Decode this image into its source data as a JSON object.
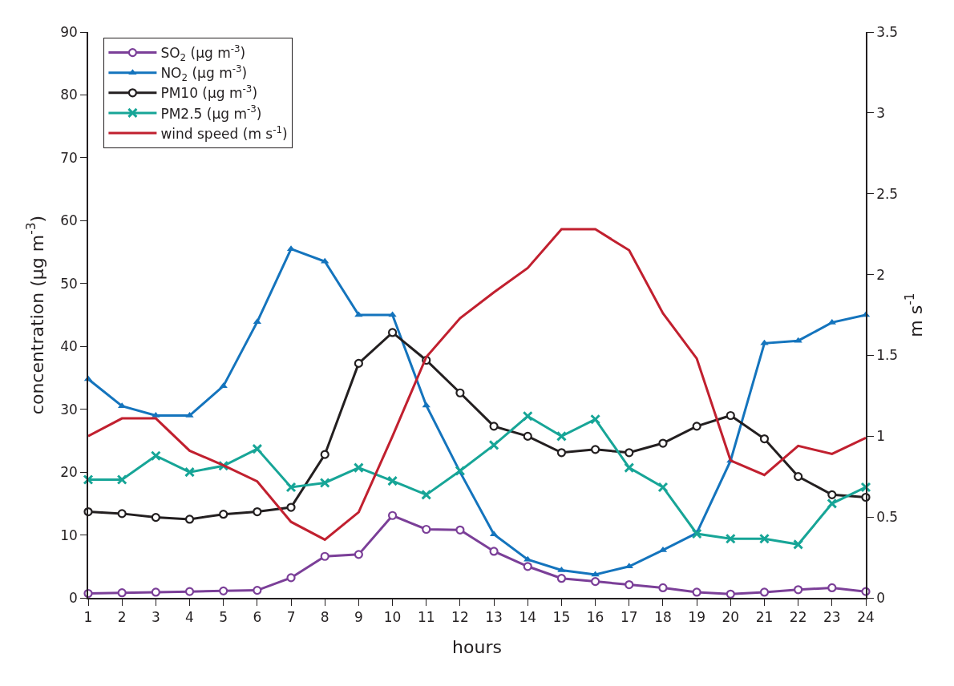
{
  "chart_data": {
    "type": "line",
    "xlabel": "hours",
    "ylabel": "concentration (µg m$^{-3}$)",
    "y2label": "m s$^{-1}$",
    "x": [
      1,
      2,
      3,
      4,
      5,
      6,
      7,
      8,
      9,
      10,
      11,
      12,
      13,
      14,
      15,
      16,
      17,
      18,
      19,
      20,
      21,
      22,
      23,
      24
    ],
    "xlim": [
      1,
      24
    ],
    "xticks": [
      1,
      2,
      3,
      4,
      5,
      6,
      7,
      8,
      9,
      10,
      11,
      12,
      13,
      14,
      15,
      16,
      17,
      18,
      19,
      20,
      21,
      22,
      23,
      24
    ],
    "ylim": [
      0,
      90
    ],
    "yticks": [
      0,
      10,
      20,
      30,
      40,
      50,
      60,
      70,
      80,
      90
    ],
    "y2lim": [
      0,
      3.5
    ],
    "y2ticks": [
      0,
      0.5,
      1,
      1.5,
      2,
      2.5,
      3,
      3.5
    ],
    "legend": "top left",
    "line_style": "solid",
    "series": [
      {
        "name": "SO$_{2}$ (µg m$^{-3}$)",
        "color": "#7b3f98",
        "marker": "circle",
        "values": [
          0.7,
          0.8,
          0.9,
          1.0,
          1.1,
          1.2,
          3.2,
          6.6,
          6.9,
          13.1,
          10.9,
          10.8,
          7.4,
          5.0,
          3.1,
          2.6,
          2.1,
          1.6,
          0.9,
          0.6,
          0.9,
          1.3,
          1.6,
          1.0
        ]
      },
      {
        "name": "NO$_{2}$ (µg m$^{-3}$)",
        "color": "#1474bd",
        "marker": "triangle",
        "values": [
          34.8,
          30.5,
          29,
          29,
          33.7,
          43.9,
          55.5,
          53.5,
          45,
          45,
          30.6,
          20,
          10.1,
          6.1,
          4.4,
          3.7,
          5,
          7.6,
          10.3,
          21.8,
          40.5,
          40.9,
          43.8,
          45
        ]
      },
      {
        "name": "PM10 (µg m$^{-3}$)",
        "color": "#231f20",
        "marker": "circle",
        "values": [
          13.7,
          13.4,
          12.8,
          12.5,
          13.3,
          13.7,
          14.4,
          22.8,
          37.3,
          42.2,
          37.8,
          32.6,
          27.3,
          25.7,
          23.1,
          23.6,
          23.1,
          24.6,
          27.3,
          29,
          25.3,
          19.3,
          16.4,
          16
        ]
      },
      {
        "name": "PM2.5 (µg m$^{-3}$)",
        "color": "#17a597",
        "marker": "cross",
        "values": [
          18.8,
          18.8,
          22.6,
          20,
          21,
          23.7,
          17.6,
          18.3,
          20.7,
          18.6,
          16.4,
          20.2,
          24.3,
          28.9,
          25.7,
          28.4,
          20.7,
          17.6,
          10.2,
          9.4,
          9.4,
          8.5,
          15,
          17.6
        ]
      },
      {
        "name": "wind speed (m s$^{-1}$)",
        "color": "#c1202f",
        "marker": "none",
        "axis": "y2",
        "values": [
          1.0,
          1.11,
          1.11,
          0.91,
          0.82,
          0.72,
          0.47,
          0.36,
          0.53,
          1.0,
          1.49,
          1.73,
          1.89,
          2.04,
          2.28,
          2.28,
          2.15,
          1.76,
          1.48,
          0.85,
          0.76,
          0.94,
          0.89,
          0.99
        ]
      }
    ]
  }
}
